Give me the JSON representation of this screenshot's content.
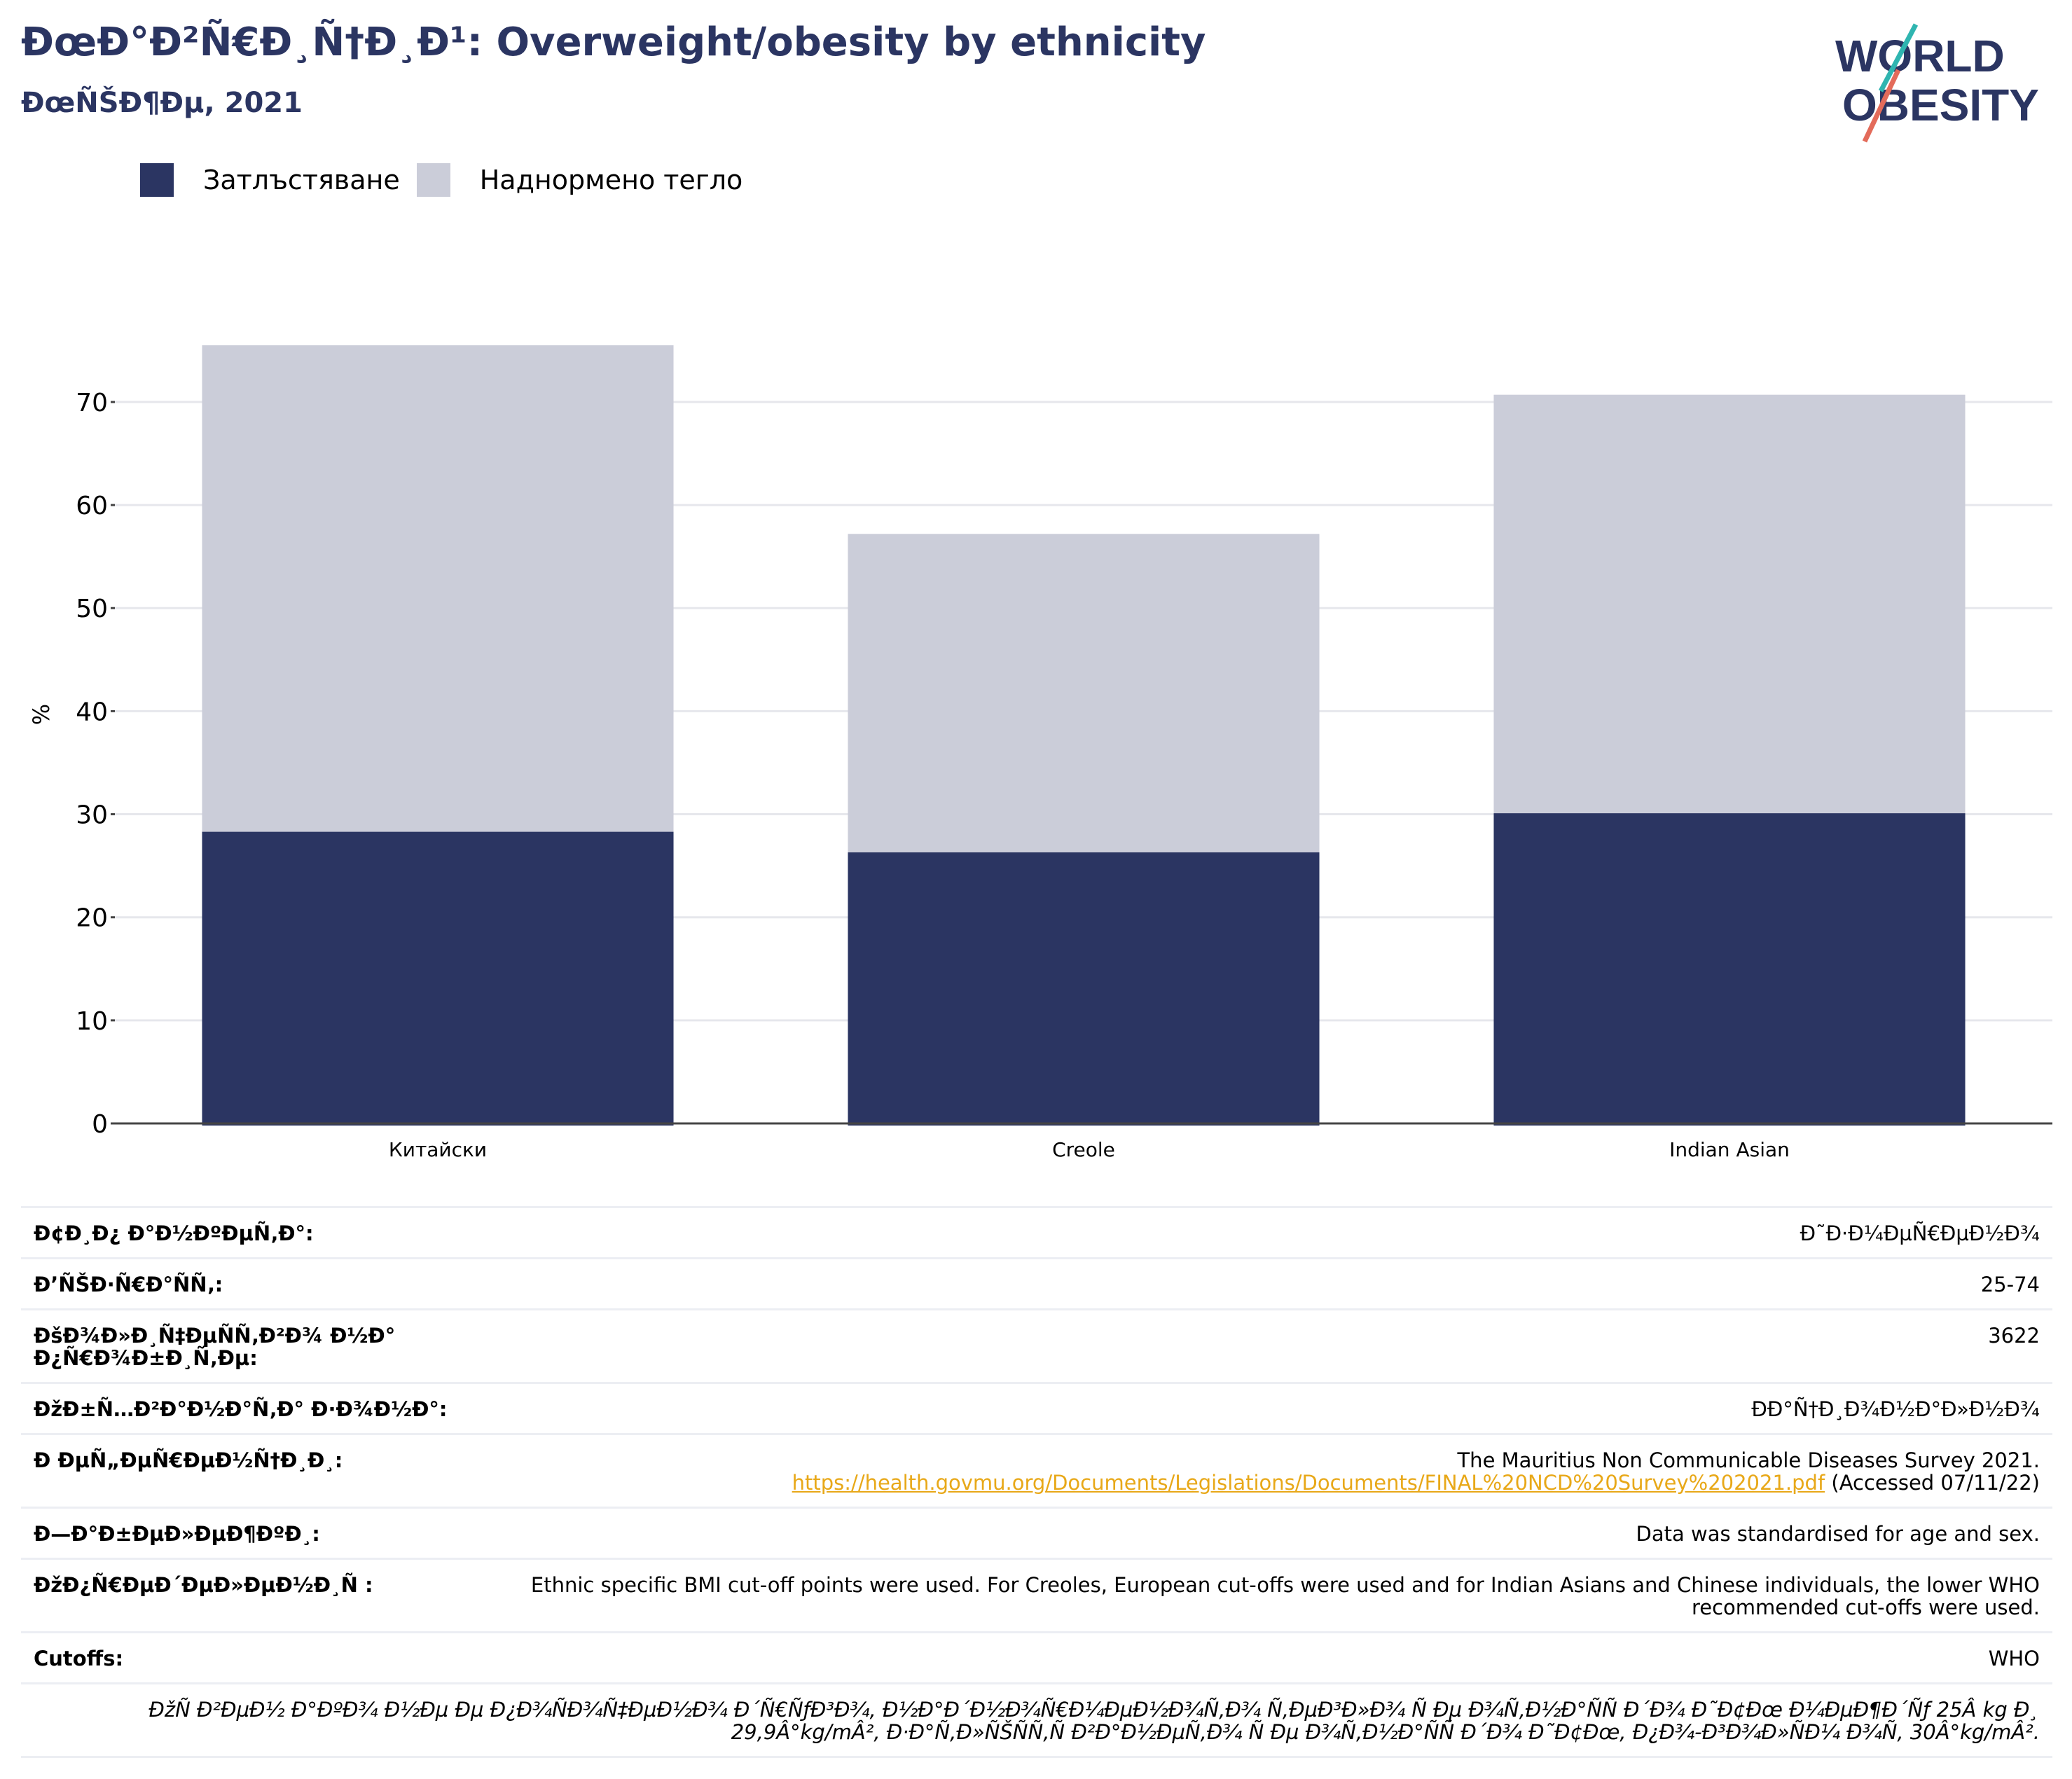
{
  "header": {
    "title": "ÐœÐ°Ð²Ñ€Ð¸Ñ†Ð¸Ð¹: Overweight/obesity by ethnicity",
    "subtitle": "ÐœÑŠÐ¶Ðµ, 2021"
  },
  "logo": {
    "line1": "WORLD",
    "line2": "OBESITY"
  },
  "colors": {
    "obesity": "#2b3562",
    "overweight": "#cbcdd9",
    "link": "#e8a818",
    "logo_teal": "#2fb5b0",
    "logo_red": "#e36b5a"
  },
  "chart_data": {
    "type": "bar",
    "stacked": true,
    "categories": [
      "Китайски",
      "Creole",
      "Indian Asian"
    ],
    "series": [
      {
        "name": "Затлъстяване",
        "values": [
          28.3,
          26.3,
          30.1
        ]
      },
      {
        "name": "Наднормено тегло",
        "values": [
          47.2,
          30.9,
          40.6
        ]
      }
    ],
    "ylabel": "%",
    "ylim": [
      0,
      75.5
    ],
    "yticks": [
      0,
      10,
      20,
      30,
      40,
      50,
      60,
      70
    ],
    "grid": true,
    "legend_position": "top-left"
  },
  "meta": {
    "rows": [
      {
        "key": "Ð¢Ð¸Ð¿ Ð°Ð½ÐºÐµÑ‚Ð°:",
        "value": "Ð˜Ð·Ð¼ÐµÑ€ÐµÐ½Ð¾"
      },
      {
        "key": "Ð’ÑŠÐ·Ñ€Ð°ÑÑ‚:",
        "value": "25-74"
      },
      {
        "key": "ÐšÐ¾Ð»Ð¸Ñ‡ÐµÑÑ‚Ð²Ð¾ Ð½Ð°\nÐ¿Ñ€Ð¾Ð±Ð¸Ñ‚Ðµ:",
        "value": "3622"
      },
      {
        "key": "ÐžÐ±Ñ…Ð²Ð°Ð½Ð°Ñ‚Ð° Ð·Ð¾Ð½Ð°:",
        "value": "ÐÐ°Ñ†Ð¸Ð¾Ð½Ð°Ð»Ð½Ð¾"
      }
    ],
    "reference": {
      "key": "Ð ÐµÑ„ÐµÑ€ÐµÐ½Ñ†Ð¸Ð¸:",
      "text": "The Mauritius Non Communicable Diseases Survey 2021.",
      "link": "https://health.govmu.org/Documents/Legislations/Documents/FINAL%20NCD%20Survey%202021.pdf",
      "accessed": "(Accessed 07/11/22)"
    },
    "rows2": [
      {
        "key": "Ð—Ð°Ð±ÐµÐ»ÐµÐ¶ÐºÐ¸:",
        "value": "Data was standardised for age and sex."
      },
      {
        "key": "ÐžÐ¿Ñ€ÐµÐ´ÐµÐ»ÐµÐ½Ð¸Ñ :",
        "value": "Ethnic specific BMI cut-off points were used. For Creoles, European cut-offs were used and for Indian Asians and Chinese individuals, the lower WHO recommended cut-offs were used."
      },
      {
        "key": "Cutoffs:",
        "value": "WHO"
      }
    ],
    "note": "ÐžÑ Ð²ÐµÐ½ Ð°ÐºÐ¾ Ð½Ðµ Ðµ Ð¿Ð¾ÑÐ¾Ñ‡ÐµÐ½Ð¾ Ð´Ñ€ÑƒÐ³Ð¾, Ð½Ð°Ð´Ð½Ð¾Ñ€Ð¼ÐµÐ½Ð¾Ñ‚Ð¾ Ñ‚ÐµÐ³Ð»Ð¾ Ñ Ðµ Ð¾Ñ‚Ð½Ð°ÑÑ Ð´Ð¾ Ð˜Ð¢Ðœ Ð¼ÐµÐ¶Ð´Ñƒ 25Â kg Ð¸ 29,9Â°kg/mÂ², Ð·Ð°Ñ‚Ð»ÑŠÑÑ‚Ñ Ð²Ð°Ð½ÐµÑ‚Ð¾ Ñ Ðµ Ð¾Ñ‚Ð½Ð°ÑÑ Ð´Ð¾ Ð˜Ð¢Ðœ, Ð¿Ð¾-Ð³Ð¾Ð»ÑÐ¼ Ð¾Ñ‚ 30Â°kg/mÂ²."
  }
}
